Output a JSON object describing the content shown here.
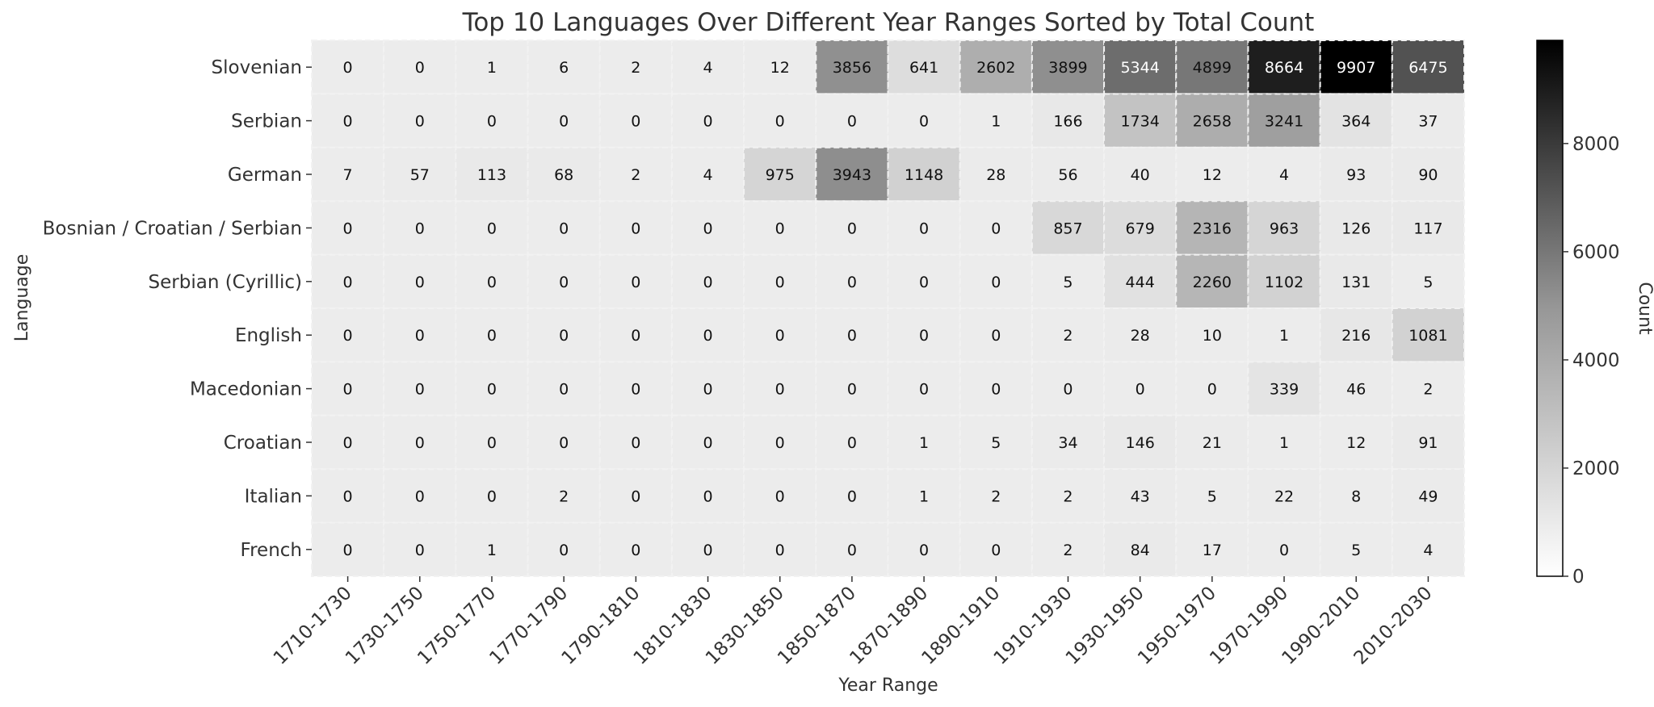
{
  "chart_data": {
    "type": "heatmap",
    "title": "Top 10 Languages Over Different Year Ranges Sorted by Total Count",
    "xlabel": "Year Range",
    "ylabel": "Language",
    "x": [
      "1710-1730",
      "1730-1750",
      "1750-1770",
      "1770-1790",
      "1790-1810",
      "1810-1830",
      "1830-1850",
      "1850-1870",
      "1870-1890",
      "1890-1910",
      "1910-1930",
      "1930-1950",
      "1950-1970",
      "1970-1990",
      "1990-2010",
      "2010-2030"
    ],
    "y": [
      "Slovenian",
      "Serbian",
      "German",
      "Bosnian / Croatian / Serbian",
      "Serbian (Cyrillic)",
      "English",
      "Macedonian",
      "Croatian",
      "Italian",
      "French"
    ],
    "values": [
      [
        0,
        0,
        1,
        6,
        2,
        4,
        12,
        3856,
        641,
        2602,
        3899,
        5344,
        4899,
        8664,
        9907,
        6475
      ],
      [
        0,
        0,
        0,
        0,
        0,
        0,
        0,
        0,
        0,
        1,
        166,
        1734,
        2658,
        3241,
        364,
        37
      ],
      [
        7,
        57,
        113,
        68,
        2,
        4,
        975,
        3943,
        1148,
        28,
        56,
        40,
        12,
        4,
        93,
        90
      ],
      [
        0,
        0,
        0,
        0,
        0,
        0,
        0,
        0,
        0,
        0,
        857,
        679,
        2316,
        963,
        126,
        117
      ],
      [
        0,
        0,
        0,
        0,
        0,
        0,
        0,
        0,
        0,
        0,
        5,
        444,
        2260,
        1102,
        131,
        5
      ],
      [
        0,
        0,
        0,
        0,
        0,
        0,
        0,
        0,
        0,
        0,
        2,
        28,
        10,
        1,
        216,
        1081
      ],
      [
        0,
        0,
        0,
        0,
        0,
        0,
        0,
        0,
        0,
        0,
        0,
        0,
        0,
        339,
        46,
        2
      ],
      [
        0,
        0,
        0,
        0,
        0,
        0,
        0,
        0,
        1,
        5,
        34,
        146,
        21,
        1,
        12,
        91
      ],
      [
        0,
        0,
        0,
        2,
        0,
        0,
        0,
        0,
        1,
        2,
        2,
        43,
        5,
        22,
        8,
        49
      ],
      [
        0,
        0,
        1,
        0,
        0,
        0,
        0,
        0,
        0,
        0,
        2,
        84,
        17,
        0,
        5,
        4
      ]
    ],
    "colorbar": {
      "label": "Count",
      "min": 0,
      "max": 9907,
      "ticks": [
        0,
        2000,
        4000,
        6000,
        8000
      ],
      "colormap": "Greys"
    },
    "grid": true
  }
}
